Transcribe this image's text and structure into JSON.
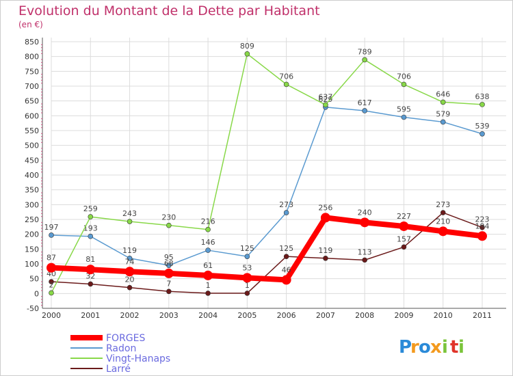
{
  "chart_data": {
    "type": "line",
    "title": "Evolution du Montant de la Dette par Habitant",
    "subtitle": "(en €)",
    "xlabel": "",
    "ylabel": "",
    "ylim": [
      -50,
      850
    ],
    "yticks": [
      -50,
      0,
      50,
      100,
      150,
      200,
      250,
      300,
      350,
      400,
      450,
      500,
      550,
      600,
      650,
      700,
      750,
      800,
      850
    ],
    "categories": [
      "2000",
      "2001",
      "2002",
      "2003",
      "2004",
      "2005",
      "2006",
      "2007",
      "2008",
      "2009",
      "2010",
      "2011"
    ],
    "grid": true,
    "legend": "bottom-left",
    "series": [
      {
        "name": "Larré",
        "color": "#6b1a1a",
        "width": 1.5,
        "marker": 3.5,
        "values": [
          40,
          32,
          20,
          7,
          1,
          1,
          125,
          119,
          113,
          157,
          273,
          223
        ],
        "labels": [
          "40",
          "32",
          "20",
          "7",
          "1",
          "1",
          "125",
          "119",
          "113",
          "157",
          "273",
          "223"
        ]
      },
      {
        "name": "Radon",
        "color": "#5a9ad0",
        "width": 1.5,
        "marker": 3.5,
        "values": [
          197,
          193,
          119,
          95,
          146,
          125,
          273,
          629,
          617,
          595,
          579,
          539
        ],
        "labels": [
          "197",
          "193",
          "119",
          "95",
          "146",
          "125",
          "273",
          "629",
          "617",
          "595",
          "579",
          "539"
        ]
      },
      {
        "name": "Vingt-Hanaps",
        "color": "#88d848",
        "width": 1.5,
        "marker": 3.5,
        "values": [
          2,
          259,
          243,
          230,
          216,
          809,
          706,
          637,
          789,
          706,
          646,
          638
        ],
        "labels": [
          "2",
          "259",
          "243",
          "230",
          "216",
          "809",
          "706",
          "637",
          "789",
          "706",
          "646",
          "638"
        ]
      },
      {
        "name": "FORGES",
        "color": "#ff0000",
        "width": 8,
        "marker": 7,
        "values": [
          87,
          81,
          74,
          68,
          61,
          53,
          46,
          256,
          240,
          227,
          210,
          194
        ],
        "labels": [
          "87",
          "81",
          "74",
          "68",
          "61",
          "53",
          "46",
          "256",
          "240",
          "227",
          "210",
          "194"
        ]
      }
    ],
    "legend_entries": [
      {
        "name": "FORGES",
        "color": "#ff0000",
        "width": 8
      },
      {
        "name": "Radon",
        "color": "#5a9ad0",
        "width": 2
      },
      {
        "name": "Vingt-Hanaps",
        "color": "#88d848",
        "width": 2
      },
      {
        "name": "Larré",
        "color": "#6b1a1a",
        "width": 2
      }
    ]
  },
  "logo": {
    "letters": [
      {
        "char": "P",
        "color": "#2a8ad8"
      },
      {
        "char": "r",
        "color": "#f39a1e"
      },
      {
        "char": "o",
        "color": "#2a8ad8"
      },
      {
        "char": "x",
        "color": "#f39a1e"
      },
      {
        "char": "i",
        "color": "#7ac43a"
      },
      {
        "char": "t",
        "color": "#e0342a"
      },
      {
        "char": "i",
        "color": "#7ac43a"
      }
    ]
  }
}
